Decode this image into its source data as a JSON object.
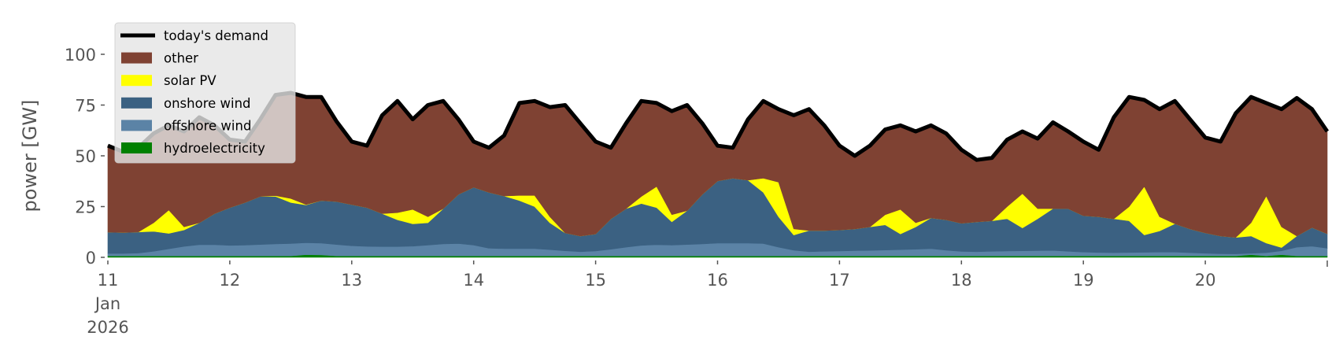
{
  "chart_data": {
    "type": "area",
    "stacked": true,
    "title": "",
    "xlabel": "",
    "ylabel": "power [GW]",
    "ylim": [
      0,
      120
    ],
    "xlim": [
      "2026-01-11 00:00",
      "2026-01-21 00:00"
    ],
    "grid": false,
    "legend_position": "top-left",
    "y_ticks": [
      "0",
      "25",
      "50",
      "75",
      "100"
    ],
    "y_tick_values": [
      0,
      25,
      50,
      75,
      100
    ],
    "x_ticks": [
      {
        "label": "11",
        "sub": [
          "Jan",
          "2026"
        ]
      },
      {
        "label": "12"
      },
      {
        "label": "13"
      },
      {
        "label": "14"
      },
      {
        "label": "15"
      },
      {
        "label": "16"
      },
      {
        "label": "17"
      },
      {
        "label": "18"
      },
      {
        "label": "19"
      },
      {
        "label": "20"
      }
    ],
    "x": [
      "2026-01-11 00:00",
      "2026-01-11 03:00",
      "2026-01-11 06:00",
      "2026-01-11 09:00",
      "2026-01-11 12:00",
      "2026-01-11 15:00",
      "2026-01-11 18:00",
      "2026-01-11 21:00",
      "2026-01-12 00:00",
      "2026-01-12 03:00",
      "2026-01-12 06:00",
      "2026-01-12 09:00",
      "2026-01-12 12:00",
      "2026-01-12 15:00",
      "2026-01-12 18:00",
      "2026-01-12 21:00",
      "2026-01-13 00:00",
      "2026-01-13 03:00",
      "2026-01-13 06:00",
      "2026-01-13 09:00",
      "2026-01-13 12:00",
      "2026-01-13 15:00",
      "2026-01-13 18:00",
      "2026-01-13 21:00",
      "2026-01-14 00:00",
      "2026-01-14 03:00",
      "2026-01-14 06:00",
      "2026-01-14 09:00",
      "2026-01-14 12:00",
      "2026-01-14 15:00",
      "2026-01-14 18:00",
      "2026-01-14 21:00",
      "2026-01-15 00:00",
      "2026-01-15 03:00",
      "2026-01-15 06:00",
      "2026-01-15 09:00",
      "2026-01-15 12:00",
      "2026-01-15 15:00",
      "2026-01-15 18:00",
      "2026-01-15 21:00",
      "2026-01-16 00:00",
      "2026-01-16 03:00",
      "2026-01-16 06:00",
      "2026-01-16 09:00",
      "2026-01-16 12:00",
      "2026-01-16 15:00",
      "2026-01-16 18:00",
      "2026-01-16 21:00",
      "2026-01-17 00:00",
      "2026-01-17 03:00",
      "2026-01-17 06:00",
      "2026-01-17 09:00",
      "2026-01-17 12:00",
      "2026-01-17 15:00",
      "2026-01-17 18:00",
      "2026-01-17 21:00",
      "2026-01-18 00:00",
      "2026-01-18 03:00",
      "2026-01-18 06:00",
      "2026-01-18 09:00",
      "2026-01-18 12:00",
      "2026-01-18 15:00",
      "2026-01-18 18:00",
      "2026-01-18 21:00",
      "2026-01-19 00:00",
      "2026-01-19 03:00",
      "2026-01-19 06:00",
      "2026-01-19 09:00",
      "2026-01-19 12:00",
      "2026-01-19 15:00",
      "2026-01-19 18:00",
      "2026-01-19 21:00",
      "2026-01-20 00:00",
      "2026-01-20 03:00",
      "2026-01-20 06:00",
      "2026-01-20 09:00",
      "2026-01-20 12:00",
      "2026-01-20 15:00",
      "2026-01-20 18:00",
      "2026-01-20 21:00",
      "2026-01-21 00:00"
    ],
    "series": [
      {
        "name": "hydroelectricity",
        "color": "#008000",
        "values": [
          0.7,
          0.7,
          0.7,
          0.7,
          0.7,
          0.7,
          0.7,
          0.7,
          0.7,
          0.7,
          0.7,
          0.7,
          0.7,
          1.3,
          1.2,
          0.7,
          0.7,
          0.7,
          0.7,
          0.7,
          0.7,
          0.7,
          0.7,
          0.7,
          0.7,
          0.7,
          0.7,
          0.7,
          0.7,
          0.7,
          0.7,
          0.7,
          0.7,
          0.7,
          0.7,
          0.7,
          0.7,
          0.7,
          0.7,
          0.7,
          0.7,
          0.7,
          0.7,
          0.7,
          0.7,
          0.7,
          0.7,
          0.7,
          0.7,
          0.7,
          0.7,
          0.7,
          0.7,
          0.7,
          0.7,
          0.7,
          0.7,
          0.7,
          0.7,
          0.7,
          0.7,
          0.7,
          0.7,
          0.7,
          0.7,
          0.7,
          0.7,
          0.7,
          0.7,
          0.7,
          0.7,
          0.7,
          0.7,
          0.7,
          0.7,
          1.3,
          0.7,
          1.3,
          0.7,
          0.7,
          0.7
        ]
      },
      {
        "name": "offshore wind",
        "color": "#5b83a6",
        "values": [
          1.2,
          1.2,
          1.4,
          2.3,
          3.5,
          4.7,
          5.5,
          5.5,
          5.2,
          5.3,
          5.6,
          5.9,
          6.1,
          5.9,
          5.8,
          5.6,
          5.0,
          4.7,
          4.6,
          4.6,
          4.8,
          5.3,
          5.9,
          6.1,
          5.3,
          3.8,
          3.6,
          3.6,
          3.6,
          3.1,
          2.5,
          2.1,
          2.4,
          3.3,
          4.3,
          5.2,
          5.5,
          5.3,
          5.6,
          5.9,
          6.3,
          6.3,
          6.3,
          6.1,
          4.3,
          2.8,
          2.1,
          2.3,
          2.4,
          2.6,
          2.7,
          2.9,
          3.1,
          3.3,
          3.6,
          2.8,
          2.2,
          2.1,
          2.3,
          2.4,
          2.5,
          2.6,
          2.7,
          2.3,
          1.9,
          1.7,
          1.6,
          1.7,
          1.8,
          1.9,
          1.9,
          1.6,
          1.3,
          1.1,
          1.0,
          0.7,
          1.6,
          1.9,
          4.3,
          4.8,
          3.8
        ]
      },
      {
        "name": "onshore wind",
        "color": "#3b6182",
        "values": [
          10.5,
          10.3,
          10.4,
          9.8,
          7.6,
          8.1,
          10.8,
          15.3,
          18.6,
          21.0,
          23.7,
          23.4,
          20.2,
          18.6,
          21.0,
          21.2,
          20.3,
          19.1,
          16.2,
          13.2,
          11.0,
          11.0,
          17.4,
          24.2,
          28.5,
          27.5,
          25.9,
          23.7,
          20.7,
          13.2,
          8.8,
          7.7,
          8.4,
          15.0,
          19.0,
          20.6,
          18.3,
          11.5,
          16.7,
          24.4,
          30.6,
          32.0,
          31.0,
          25.2,
          15.0,
          7.5,
          10.4,
          10.2,
          10.4,
          10.7,
          11.6,
          12.4,
          7.7,
          11.0,
          15.1,
          15.0,
          13.9,
          14.7,
          15.0,
          15.9,
          11.3,
          15.7,
          20.6,
          21.0,
          17.9,
          17.6,
          16.7,
          15.6,
          8.5,
          10.4,
          13.9,
          11.7,
          10.0,
          8.7,
          8.1,
          8.5,
          4.7,
          1.6,
          5.5,
          9.2,
          7.1
        ]
      },
      {
        "name": "solar PV",
        "color": "#ffff00",
        "values": [
          0,
          0,
          0,
          4.2,
          11.5,
          1.5,
          0,
          0,
          0,
          0,
          0,
          0.4,
          2.0,
          0.2,
          0,
          0,
          0,
          0,
          0,
          3.5,
          7.1,
          3.0,
          0,
          0,
          0,
          0,
          0,
          2.5,
          5.5,
          3.0,
          0,
          0,
          0,
          0,
          0,
          3.5,
          10.4,
          3.5,
          0,
          0,
          0,
          0,
          0,
          7.0,
          17.0,
          3.0,
          0,
          0,
          0,
          0,
          0,
          5.0,
          12.1,
          2.0,
          0,
          0,
          0,
          0,
          0,
          6.0,
          16.9,
          5.0,
          0,
          0,
          0,
          0,
          0,
          7.0,
          23.9,
          7.0,
          0,
          0,
          0,
          0,
          0,
          6.5,
          23.2,
          10.2,
          0,
          0,
          0
        ]
      },
      {
        "name": "other",
        "color": "#7f4233",
        "values": [
          42.6,
          39.8,
          41.5,
          44.0,
          41.7,
          47.0,
          52.0,
          43.5,
          33.5,
          30.0,
          38.0,
          49.6,
          52.0,
          53.0,
          51.0,
          39.5,
          31.0,
          30.5,
          48.5,
          55.0,
          44.4,
          55.0,
          53.0,
          37.0,
          22.5,
          22.0,
          29.8,
          45.5,
          46.5,
          54.0,
          63.0,
          55.5,
          45.5,
          35.0,
          42.0,
          47.0,
          41.1,
          51.0,
          52.0,
          35.0,
          17.4,
          15.0,
          30.0,
          38.0,
          36.0,
          56.0,
          59.8,
          51.8,
          41.5,
          36.0,
          40.0,
          42.0,
          41.4,
          45.0,
          45.6,
          42.5,
          36.2,
          30.5,
          31.0,
          33.0,
          30.6,
          34.5,
          42.5,
          38.0,
          36.5,
          33.0,
          50.0,
          54.0,
          42.6,
          53.0,
          60.5,
          54.0,
          47.0,
          46.5,
          61.2,
          62.0,
          45.8,
          58.0,
          68.0,
          58.3,
          50.4
        ]
      }
    ],
    "line": {
      "name": "today's demand",
      "color": "#000000",
      "values": [
        55,
        52,
        54,
        61,
        65,
        62,
        69,
        65,
        58,
        57,
        68,
        80,
        81,
        79,
        79,
        67,
        57,
        55,
        70,
        77,
        68,
        75,
        77,
        68,
        57,
        54,
        60,
        76,
        77,
        74,
        75,
        66,
        57,
        54,
        66,
        77,
        76,
        72,
        75,
        66,
        55,
        54,
        68,
        77,
        73,
        70,
        73,
        65,
        55,
        50,
        55,
        63,
        65,
        62,
        65,
        61,
        53,
        48,
        49,
        58,
        62,
        58.5,
        66.5,
        62,
        57,
        53,
        69,
        79,
        77.5,
        73,
        77,
        68,
        59,
        57,
        71,
        79,
        76,
        73,
        78.5,
        73,
        62
      ]
    },
    "legend": [
      {
        "label": "today's demand",
        "kind": "line",
        "color": "#000000"
      },
      {
        "label": "other",
        "kind": "patch",
        "color": "#7f4233"
      },
      {
        "label": "solar PV",
        "kind": "patch",
        "color": "#ffff00"
      },
      {
        "label": "onshore wind",
        "kind": "patch",
        "color": "#3b6182"
      },
      {
        "label": "offshore wind",
        "kind": "patch",
        "color": "#5b83a6"
      },
      {
        "label": "hydroelectricity",
        "kind": "patch",
        "color": "#008000"
      }
    ]
  }
}
